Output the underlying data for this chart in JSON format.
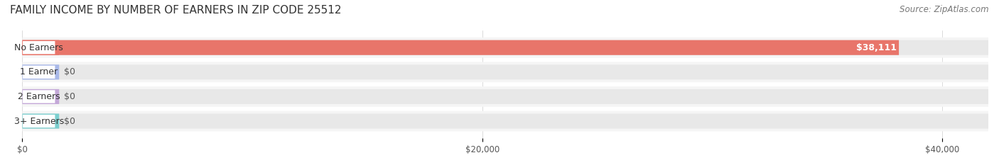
{
  "title": "FAMILY INCOME BY NUMBER OF EARNERS IN ZIP CODE 25512",
  "source": "Source: ZipAtlas.com",
  "categories": [
    "No Earners",
    "1 Earner",
    "2 Earners",
    "3+ Earners"
  ],
  "values": [
    38111,
    0,
    0,
    0
  ],
  "bar_colors": [
    "#e8756a",
    "#a8b8e8",
    "#c4a8d8",
    "#7acece"
  ],
  "label_colors": [
    "#e8756a",
    "#a8b8e8",
    "#c4a8d8",
    "#7acece"
  ],
  "bar_bg_color": "#f0f0f0",
  "row_bg_color": "#f5f5f5",
  "xlim": [
    0,
    42000
  ],
  "xticks": [
    0,
    20000,
    40000
  ],
  "xticklabels": [
    "$0",
    "$20,000",
    "$40,000"
  ],
  "value_labels": [
    "$38,111",
    "$0",
    "$0",
    "$0"
  ],
  "title_fontsize": 11,
  "source_fontsize": 8.5,
  "label_fontsize": 9,
  "value_fontsize": 9,
  "figsize": [
    14.06,
    2.33
  ],
  "dpi": 100
}
